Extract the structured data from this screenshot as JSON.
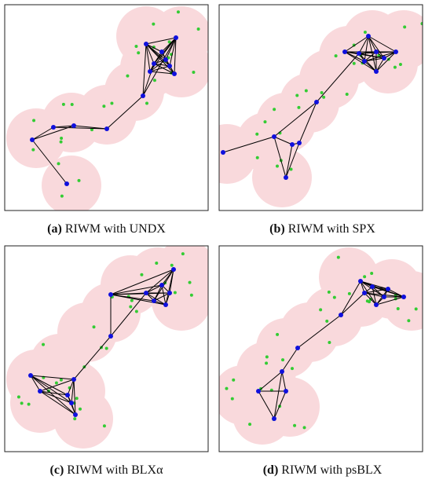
{
  "panels": [
    {
      "label": "(a)",
      "text": "RIWM with UNDX"
    },
    {
      "label": "(b)",
      "text": "RIWM with SPX"
    },
    {
      "label": "(c)",
      "text": "RIWM with BLXα"
    },
    {
      "label": "(d)",
      "text": "RIWM with psBLX"
    }
  ]
}
